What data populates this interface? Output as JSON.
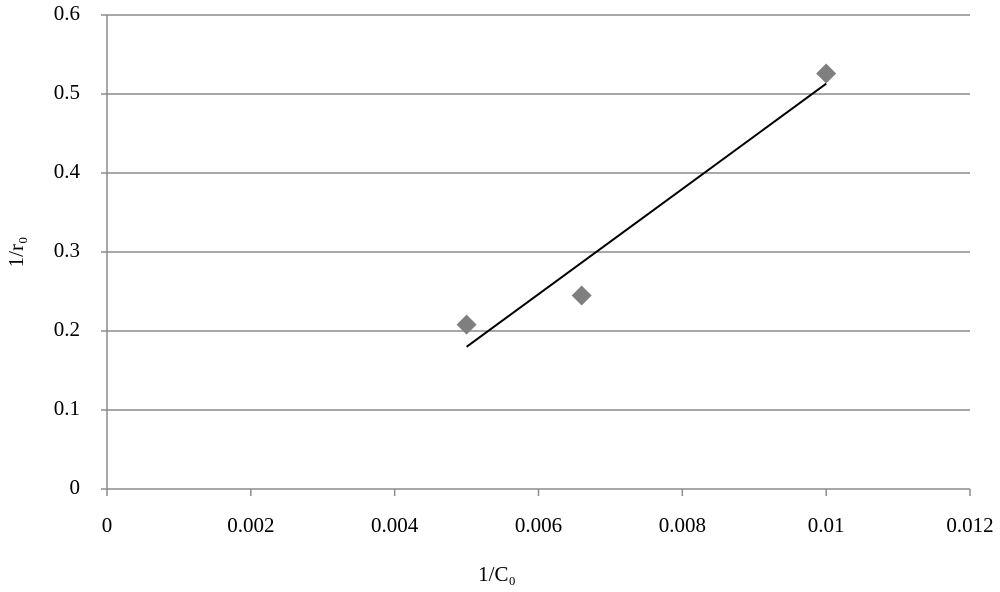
{
  "chart_data": {
    "type": "scatter",
    "x_label": "1/C₀",
    "y_label": "1/r₀",
    "series": [
      {
        "color": "#7f7f7f",
        "x": [
          0.005,
          0.0066,
          0.01
        ],
        "values": [
          0.208,
          0.245,
          0.526
        ]
      }
    ],
    "trendline": {
      "color": "#000000",
      "x": [
        0.005,
        0.01
      ],
      "y": [
        0.18,
        0.513
      ]
    },
    "xlim": [
      0,
      0.012
    ],
    "xticks": [
      0,
      0.002,
      0.004,
      0.006,
      0.008,
      0.01,
      0.012
    ],
    "ylim": [
      0,
      0.6
    ],
    "yticks": [
      0,
      0.1,
      0.2,
      0.3,
      0.4,
      0.5,
      0.6
    ],
    "grid": true
  }
}
